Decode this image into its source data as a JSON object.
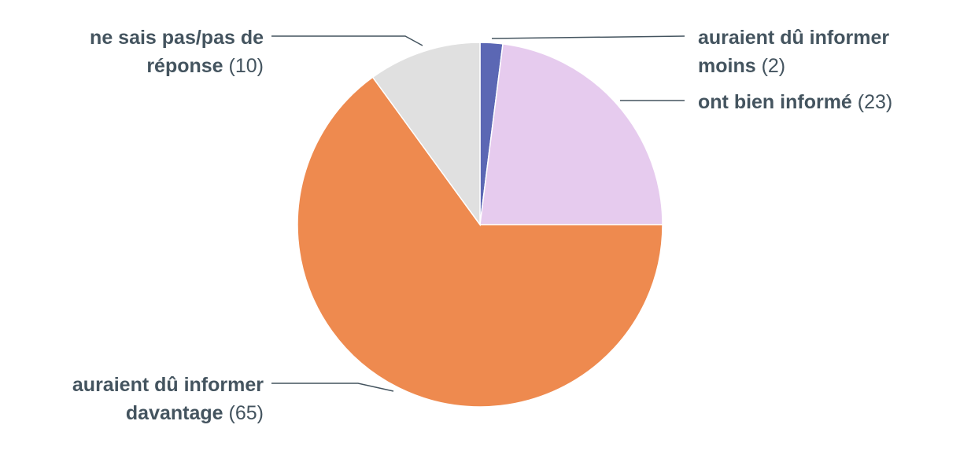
{
  "chart_data": {
    "type": "pie",
    "categories": [
      "auraient dû informer moins",
      "ont bien informé",
      "auraient dû informer davantage",
      "ne sais pas/pas de réponse"
    ],
    "values": [
      2,
      23,
      65,
      10
    ],
    "value_labels": [
      "(2)",
      "(23)",
      "(65)",
      "(10)"
    ],
    "colors": [
      "#5b67b4",
      "#e6cbee",
      "#ee8a4f",
      "#e0e0e0"
    ]
  }
}
